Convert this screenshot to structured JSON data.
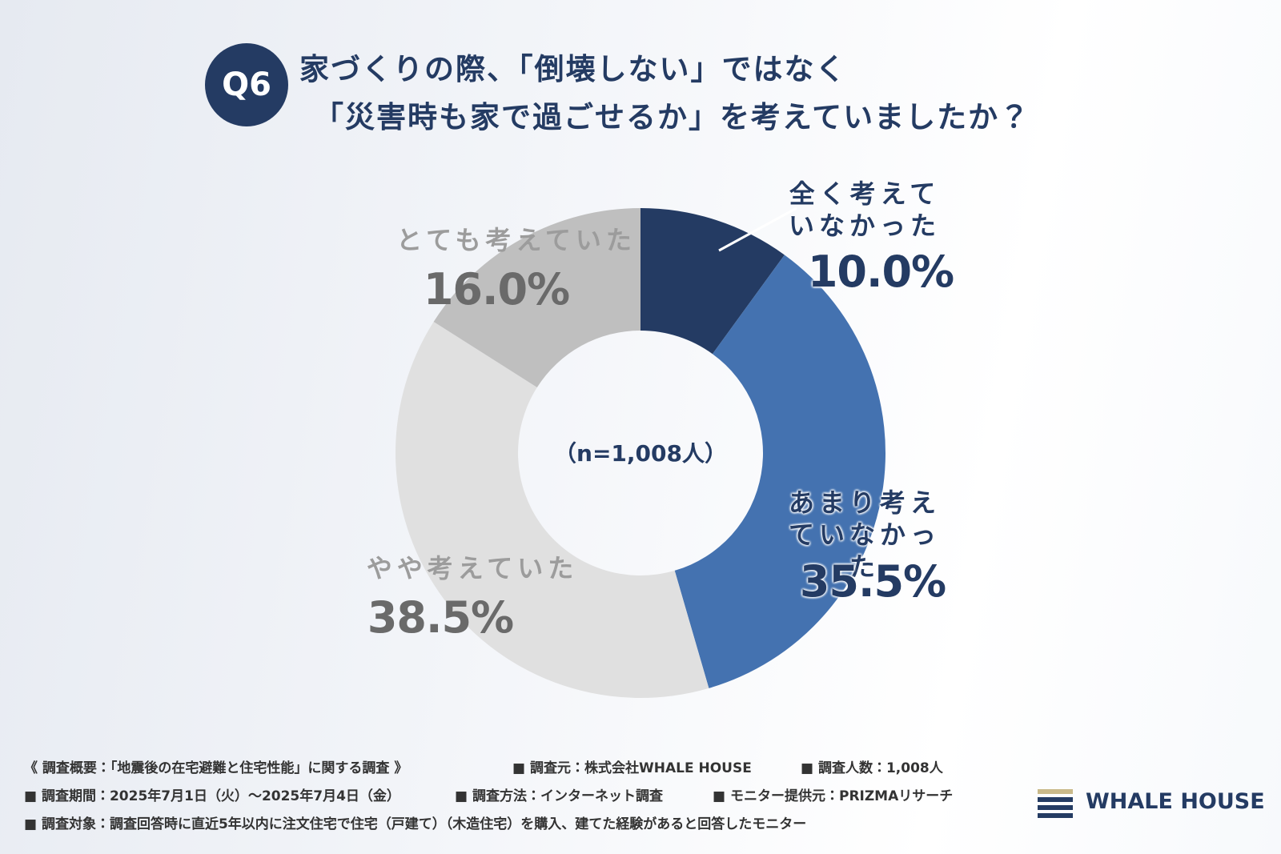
{
  "chart_data": {
    "type": "donut",
    "badge": "Q6",
    "title": [
      "家づくりの際、「倒壊しない」ではなく",
      "「災害時も家で過ごせるか」を考えていましたか？"
    ],
    "center_label": "（n=1,008人）",
    "categories": [
      "全く考えていなかった",
      "あまり考えていなかった",
      "やや考えていた",
      "とても考えていた"
    ],
    "values": [
      10.0,
      35.5,
      38.5,
      16.0
    ],
    "value_labels": [
      "10.0%",
      "35.5%",
      "38.5%",
      "16.0%"
    ],
    "colors": [
      "#243b63",
      "#4472b0",
      "#e0e0e0",
      "#bfbfbf"
    ]
  },
  "footer": {
    "notes": [
      "《 調査概要：「地震後の在宅避難と住宅性能」に関する調査 》",
      "■ 調査元：株式会社WHALE HOUSE",
      "■ 調査人数：1,008人",
      "■ 調査期間：2025年7月1日（火）～2025年7月4日（金）",
      "■ 調査方法：インターネット調査",
      "■ モニター提供元：PRIZMAリサーチ",
      "■ 調査対象：調査回答時に直近5年以内に注文住宅で住宅（戸建て）（木造住宅）を購入、建てた経験があると回答したモニター"
    ],
    "logo": "WHALE HOUSE"
  }
}
